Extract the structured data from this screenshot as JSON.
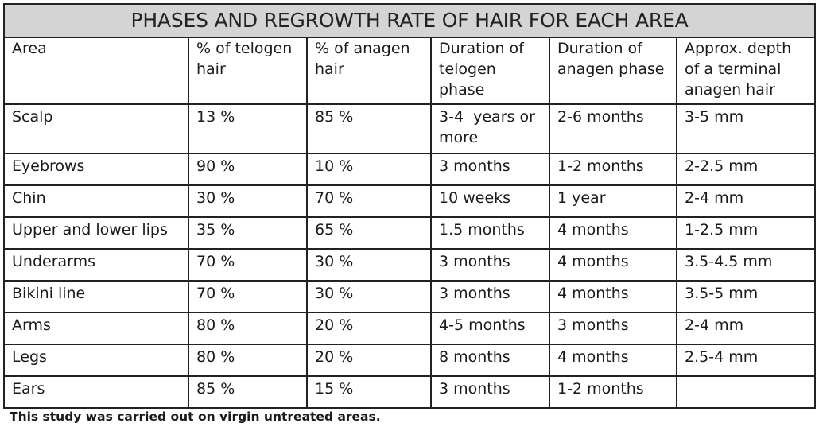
{
  "title": "PHASES AND REGROWTH RATE OF HAIR FOR EACH AREA",
  "headers": [
    "Area",
    "% of telogen hair",
    "% of anagen hair",
    "Duration of telogen phase",
    "Duration of anagen phase",
    "Approx. depth of a terminal anagen hair"
  ],
  "rows": [
    [
      "Scalp",
      "13 %",
      "85 %",
      "3-4  years or more",
      "2-6 months",
      "3-5 mm"
    ],
    [
      "Eyebrows",
      "90 %",
      "10 %",
      "3 months",
      "1-2 months",
      "2-2.5 mm"
    ],
    [
      "Chin",
      "30 %",
      "70 %",
      "10 weeks",
      "1 year",
      "2-4 mm"
    ],
    [
      "Upper and lower lips",
      "35 %",
      "65 %",
      "1.5 months",
      "4 months",
      "1-2.5 mm"
    ],
    [
      "Underarms",
      "70 %",
      "30 %",
      "3 months",
      "4 months",
      "3.5-4.5 mm"
    ],
    [
      "Bikini line",
      "70 %",
      "30 %",
      "3 months",
      "4 months",
      "3.5-5 mm"
    ],
    [
      "Arms",
      "80 %",
      "20 %",
      "4-5 months",
      "3 months",
      "2-4 mm"
    ],
    [
      "Legs",
      "80 %",
      "20 %",
      "8 months",
      "4 months",
      "2.5-4 mm"
    ],
    [
      "Ears",
      "85 %",
      "15 %",
      "3 months",
      "1-2 months",
      ""
    ]
  ],
  "footnote": "This study was carried out on virgin untreated areas.",
  "colors": {
    "title_bg": "#d4d4d4",
    "border": "#222222"
  }
}
